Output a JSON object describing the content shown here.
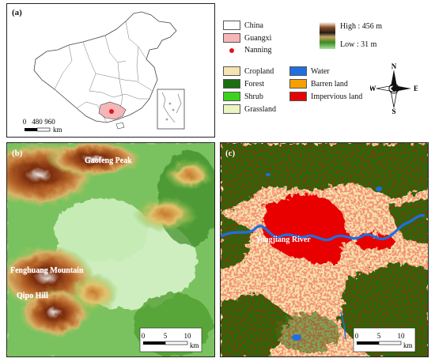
{
  "panel_a": {
    "label": "(a)",
    "scale": {
      "ticks": [
        "0",
        "480",
        "960"
      ],
      "unit": "km"
    }
  },
  "legend": {
    "china": "China",
    "guangxi": "Guangxi",
    "nanning": "Nanning",
    "elevation_high": "High : 456 m",
    "elevation_low": "Low : 31 m",
    "landcover": [
      {
        "label": "Cropland",
        "color": "#f5e3b0"
      },
      {
        "label": "Water",
        "color": "#1f6fe0"
      },
      {
        "label": "Forest",
        "color": "#1d6e10"
      },
      {
        "label": "Barren land",
        "color": "#f5a000"
      },
      {
        "label": "Shrub",
        "color": "#3cd21b"
      },
      {
        "label": "Impervious land",
        "color": "#e60000"
      },
      {
        "label": "Grassland",
        "color": "#eaf5c2"
      }
    ],
    "compass": {
      "n": "N",
      "s": "S",
      "e": "E",
      "w": "W"
    }
  },
  "panel_b": {
    "label": "(b)",
    "places": [
      "Gaofeng Peak",
      "Fenghuang Mountain",
      "Qipo Hill"
    ],
    "scale": {
      "ticks": [
        "0",
        "5",
        "10"
      ],
      "unit": "km"
    }
  },
  "panel_c": {
    "label": "(c)",
    "river": "Yongjiang River",
    "scale": {
      "ticks": [
        "0",
        "5",
        "10"
      ],
      "unit": "km"
    }
  },
  "colors": {
    "china_fill": "#ffffff",
    "guangxi_fill": "#f6b6b8",
    "nanning_dot": "#e0141e"
  }
}
